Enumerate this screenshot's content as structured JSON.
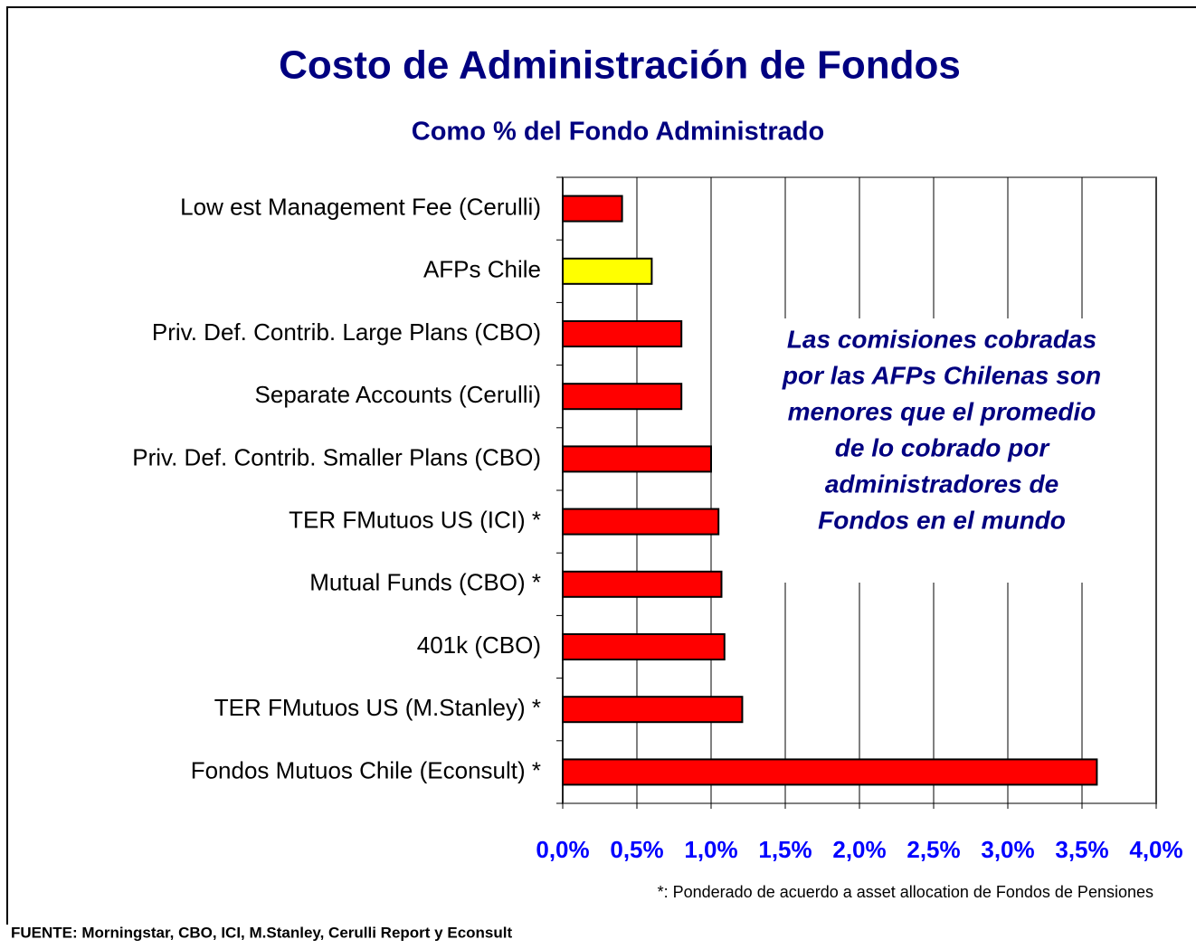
{
  "chart_data": {
    "type": "barh",
    "title": "Costo de Administración de Fondos",
    "subtitle": "Como % del Fondo Administrado",
    "categories": [
      "Low est Management Fee (Cerulli)",
      "AFPs Chile",
      "Priv. Def. Contrib. Large Plans (CBO)",
      "Separate Accounts (Cerulli)",
      "Priv. Def. Contrib. Smaller Plans (CBO)",
      "TER FMutuos US (ICI) *",
      "Mutual Funds (CBO) *",
      "401k (CBO)",
      "TER FMutuos US (M.Stanley) *",
      "Fondos Mutuos Chile (Econsult) *"
    ],
    "values": [
      0.4,
      0.6,
      0.8,
      0.8,
      1.0,
      1.05,
      1.07,
      1.09,
      1.21,
      3.6
    ],
    "colors": [
      "#ff0000",
      "#ffff00",
      "#ff0000",
      "#ff0000",
      "#ff0000",
      "#ff0000",
      "#ff0000",
      "#ff0000",
      "#ff0000",
      "#ff0000"
    ],
    "xlim": [
      0,
      4
    ],
    "xticks": [
      {
        "value": 0,
        "label": "0,0%"
      },
      {
        "value": 0.5,
        "label": "0,5%"
      },
      {
        "value": 1,
        "label": "1,0%"
      },
      {
        "value": 1.5,
        "label": "1,5%"
      },
      {
        "value": 2,
        "label": "2,0%"
      },
      {
        "value": 2.5,
        "label": "2,5%"
      },
      {
        "value": 3,
        "label": "3,0%"
      },
      {
        "value": 3.5,
        "label": "3,5%"
      },
      {
        "value": 4,
        "label": "4,0%"
      }
    ],
    "grid": true,
    "annotation": [
      "Las comisiones cobradas",
      "por las AFPs Chilenas son",
      "menores que el promedio",
      "de lo cobrado por",
      "administradores de",
      "Fondos en el mundo"
    ],
    "footnote": "*: Ponderado de acuerdo a asset allocation de Fondos de Pensiones",
    "source": "FUENTE: Morningstar, CBO, ICI, M.Stanley, Cerulli Report y Econsult"
  }
}
